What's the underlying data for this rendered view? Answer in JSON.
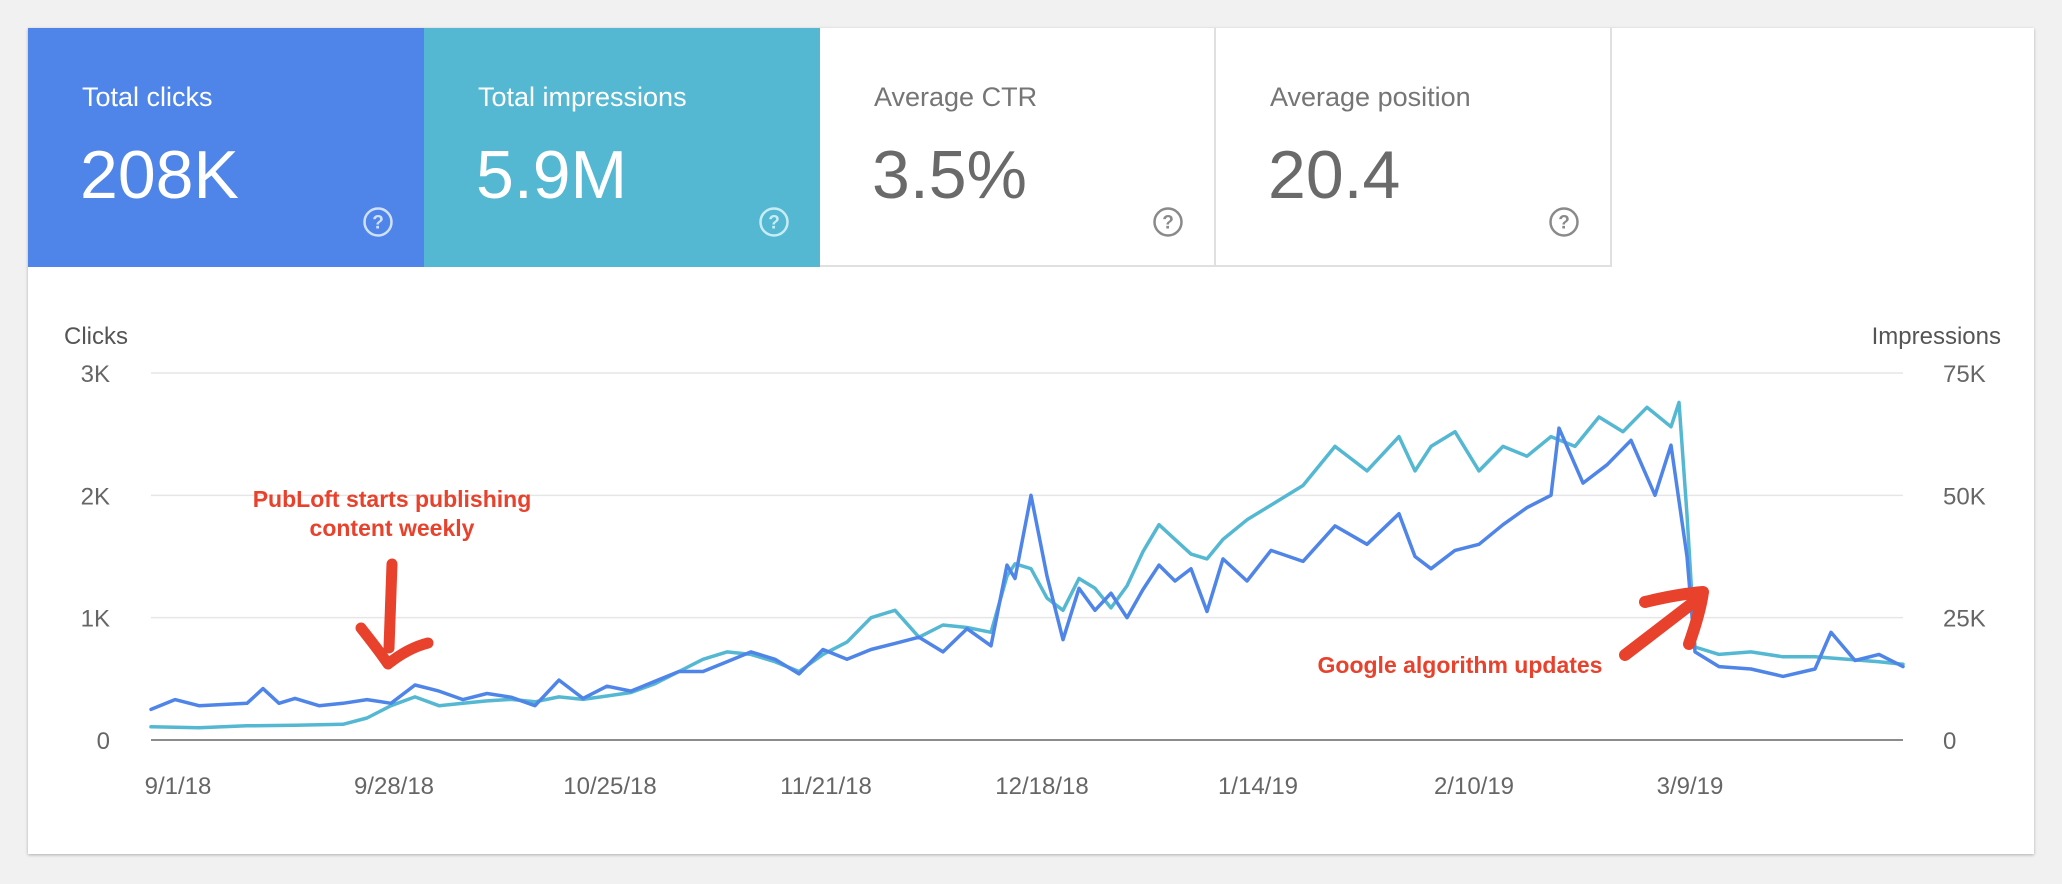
{
  "metrics": [
    {
      "label": "Total clicks",
      "value": "208K",
      "bg": "#4f85e8",
      "fg": "#ffffff",
      "icon": "help-icon"
    },
    {
      "label": "Total impressions",
      "value": "5.9M",
      "bg": "#55b8d2",
      "fg": "#ffffff",
      "icon": "help-icon"
    },
    {
      "label": "Average CTR",
      "value": "3.5%",
      "bg": "#ffffff",
      "fg": "#6a6a6a",
      "icon": "help-icon"
    },
    {
      "label": "Average position",
      "value": "20.4",
      "bg": "#ffffff",
      "fg": "#6a6a6a",
      "icon": "help-icon"
    }
  ],
  "annotations": {
    "publoft_line1": "PubLoft starts publishing",
    "publoft_line2": "content weekly",
    "google": "Google algorithm updates",
    "color": "#e8412c"
  },
  "chart_data": {
    "type": "line",
    "ylabel_left": "Clicks",
    "ylabel_right": "Impressions",
    "yticks_left": [
      "0",
      "1K",
      "2K",
      "3K"
    ],
    "yticks_right": [
      "0",
      "25K",
      "50K",
      "75K"
    ],
    "ylim_left": [
      0,
      3000
    ],
    "ylim_right": [
      0,
      75000
    ],
    "xticks": [
      "9/1/18",
      "9/28/18",
      "10/25/18",
      "11/21/18",
      "12/18/18",
      "1/14/19",
      "2/10/19",
      "3/9/19"
    ],
    "xtick_days": [
      0,
      27,
      54,
      81,
      108,
      135,
      162,
      189
    ],
    "grid": true,
    "series": [
      {
        "name": "Clicks",
        "axis": "left",
        "color": "#4f85e8",
        "points": [
          [
            0,
            250
          ],
          [
            3,
            330
          ],
          [
            6,
            280
          ],
          [
            9,
            290
          ],
          [
            12,
            300
          ],
          [
            14,
            420
          ],
          [
            16,
            300
          ],
          [
            18,
            340
          ],
          [
            21,
            280
          ],
          [
            24,
            300
          ],
          [
            27,
            330
          ],
          [
            30,
            300
          ],
          [
            33,
            450
          ],
          [
            36,
            400
          ],
          [
            39,
            330
          ],
          [
            42,
            380
          ],
          [
            45,
            350
          ],
          [
            48,
            280
          ],
          [
            51,
            490
          ],
          [
            54,
            340
          ],
          [
            57,
            440
          ],
          [
            60,
            400
          ],
          [
            63,
            480
          ],
          [
            66,
            560
          ],
          [
            69,
            560
          ],
          [
            72,
            640
          ],
          [
            75,
            720
          ],
          [
            78,
            660
          ],
          [
            81,
            540
          ],
          [
            84,
            740
          ],
          [
            87,
            660
          ],
          [
            90,
            740
          ],
          [
            93,
            790
          ],
          [
            96,
            840
          ],
          [
            99,
            720
          ],
          [
            102,
            910
          ],
          [
            105,
            770
          ],
          [
            107,
            1430
          ],
          [
            108,
            1320
          ],
          [
            110,
            2000
          ],
          [
            112,
            1340
          ],
          [
            114,
            820
          ],
          [
            116,
            1240
          ],
          [
            118,
            1060
          ],
          [
            120,
            1200
          ],
          [
            122,
            1000
          ],
          [
            124,
            1230
          ],
          [
            126,
            1430
          ],
          [
            128,
            1300
          ],
          [
            130,
            1400
          ],
          [
            132,
            1050
          ],
          [
            134,
            1480
          ],
          [
            137,
            1300
          ],
          [
            140,
            1550
          ],
          [
            144,
            1460
          ],
          [
            148,
            1750
          ],
          [
            152,
            1600
          ],
          [
            156,
            1850
          ],
          [
            158,
            1500
          ],
          [
            160,
            1400
          ],
          [
            163,
            1550
          ],
          [
            166,
            1600
          ],
          [
            169,
            1760
          ],
          [
            172,
            1900
          ],
          [
            175,
            2000
          ],
          [
            176,
            2550
          ],
          [
            179,
            2100
          ],
          [
            182,
            2250
          ],
          [
            185,
            2450
          ],
          [
            188,
            2000
          ],
          [
            190,
            2410
          ],
          [
            192,
            1500
          ],
          [
            193,
            720
          ],
          [
            196,
            600
          ],
          [
            200,
            580
          ],
          [
            204,
            520
          ],
          [
            208,
            580
          ],
          [
            210,
            880
          ],
          [
            213,
            650
          ],
          [
            216,
            700
          ],
          [
            219,
            600
          ]
        ]
      },
      {
        "name": "Impressions",
        "axis": "right",
        "color": "#55b8d2",
        "points": [
          [
            0,
            2700
          ],
          [
            6,
            2500
          ],
          [
            12,
            2900
          ],
          [
            18,
            3000
          ],
          [
            24,
            3200
          ],
          [
            27,
            4500
          ],
          [
            30,
            7000
          ],
          [
            33,
            8800
          ],
          [
            36,
            7000
          ],
          [
            39,
            7500
          ],
          [
            42,
            8000
          ],
          [
            45,
            8300
          ],
          [
            48,
            7800
          ],
          [
            51,
            8800
          ],
          [
            54,
            8300
          ],
          [
            57,
            9000
          ],
          [
            60,
            9700
          ],
          [
            63,
            11500
          ],
          [
            66,
            14000
          ],
          [
            69,
            16500
          ],
          [
            72,
            18000
          ],
          [
            75,
            17500
          ],
          [
            78,
            16000
          ],
          [
            81,
            14000
          ],
          [
            84,
            17500
          ],
          [
            87,
            20000
          ],
          [
            90,
            25000
          ],
          [
            93,
            26500
          ],
          [
            96,
            21000
          ],
          [
            99,
            23500
          ],
          [
            102,
            23000
          ],
          [
            105,
            22000
          ],
          [
            107,
            33500
          ],
          [
            108,
            36000
          ],
          [
            110,
            35000
          ],
          [
            112,
            29000
          ],
          [
            114,
            26500
          ],
          [
            116,
            33000
          ],
          [
            118,
            31000
          ],
          [
            120,
            27000
          ],
          [
            122,
            31500
          ],
          [
            124,
            38500
          ],
          [
            126,
            44000
          ],
          [
            128,
            41000
          ],
          [
            130,
            38000
          ],
          [
            132,
            37000
          ],
          [
            134,
            41000
          ],
          [
            137,
            45000
          ],
          [
            140,
            48000
          ],
          [
            144,
            52000
          ],
          [
            148,
            60000
          ],
          [
            152,
            55000
          ],
          [
            156,
            62000
          ],
          [
            158,
            55000
          ],
          [
            160,
            60000
          ],
          [
            163,
            63000
          ],
          [
            166,
            55000
          ],
          [
            169,
            60000
          ],
          [
            172,
            58000
          ],
          [
            175,
            62000
          ],
          [
            178,
            60000
          ],
          [
            181,
            66000
          ],
          [
            184,
            63000
          ],
          [
            187,
            68000
          ],
          [
            190,
            64000
          ],
          [
            191,
            69000
          ],
          [
            192,
            46000
          ],
          [
            193,
            19000
          ],
          [
            196,
            17500
          ],
          [
            200,
            18000
          ],
          [
            204,
            17000
          ],
          [
            208,
            17000
          ],
          [
            212,
            16500
          ],
          [
            216,
            16000
          ],
          [
            219,
            15500
          ]
        ]
      }
    ]
  }
}
